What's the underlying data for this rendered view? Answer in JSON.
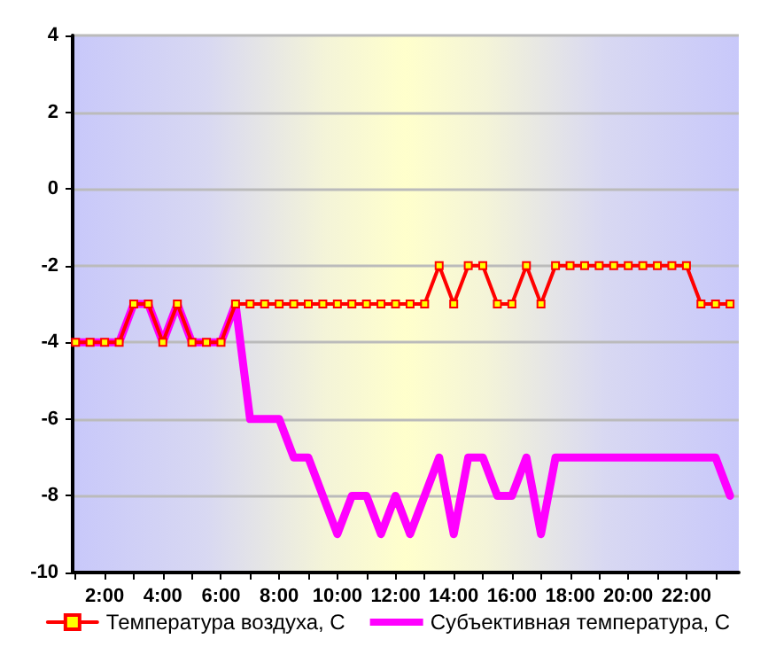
{
  "chart_data": {
    "type": "line",
    "x": [
      1,
      1.5,
      2,
      2.5,
      3,
      3.5,
      4,
      4.5,
      5,
      5.5,
      6,
      6.5,
      7,
      7.5,
      8,
      8.5,
      9,
      9.5,
      10,
      10.5,
      11,
      11.5,
      12,
      12.5,
      13,
      13.5,
      14,
      14.5,
      15,
      15.5,
      16,
      16.5,
      17,
      17.5,
      18,
      18.5,
      19,
      19.5,
      20,
      20.5,
      21,
      21.5,
      22,
      22.5,
      23,
      23.5
    ],
    "series": [
      {
        "name": "Температура воздуха, C",
        "color": "#ff0000",
        "marker": "square",
        "values": [
          -4,
          -4,
          -4,
          -4,
          -3,
          -3,
          -4,
          -3,
          -4,
          -4,
          -4,
          -3,
          -3,
          -3,
          -3,
          -3,
          -3,
          -3,
          -3,
          -3,
          -3,
          -3,
          -3,
          -3,
          -3,
          -2,
          -3,
          -2,
          -2,
          -3,
          -3,
          -2,
          -3,
          -2,
          -2,
          -2,
          -2,
          -2,
          -2,
          -2,
          -2,
          -2,
          -2,
          -3,
          -3,
          -3
        ]
      },
      {
        "name": "Субъективная температура, C",
        "color": "#ff00ff",
        "marker": "none",
        "values": [
          -4,
          -4,
          -4,
          -4,
          -3,
          -3,
          -4,
          -3,
          -4,
          -4,
          -4,
          -3,
          -6,
          -6,
          -6,
          -7,
          -7,
          -8,
          -9,
          -8,
          -8,
          -9,
          -8,
          -9,
          -8,
          -7,
          -9,
          -7,
          -7,
          -8,
          -8,
          -7,
          -9,
          -7,
          -7,
          -7,
          -7,
          -7,
          -7,
          -7,
          -7,
          -7,
          -7,
          -7,
          -7,
          -8
        ]
      }
    ],
    "xlim": [
      0.9,
      23.8
    ],
    "xticks": [
      {
        "value": 1,
        "label": null
      },
      {
        "value": 2,
        "label": "2:00"
      },
      {
        "value": 3,
        "label": null
      },
      {
        "value": 4,
        "label": "4:00"
      },
      {
        "value": 5,
        "label": null
      },
      {
        "value": 6,
        "label": "6:00"
      },
      {
        "value": 7,
        "label": null
      },
      {
        "value": 8,
        "label": "8:00"
      },
      {
        "value": 9,
        "label": null
      },
      {
        "value": 10,
        "label": "10:00"
      },
      {
        "value": 11,
        "label": null
      },
      {
        "value": 12,
        "label": "12:00"
      },
      {
        "value": 13,
        "label": null
      },
      {
        "value": 14,
        "label": "14:00"
      },
      {
        "value": 15,
        "label": null
      },
      {
        "value": 16,
        "label": "16:00"
      },
      {
        "value": 17,
        "label": null
      },
      {
        "value": 18,
        "label": "18:00"
      },
      {
        "value": 19,
        "label": null
      },
      {
        "value": 20,
        "label": "20:00"
      },
      {
        "value": 21,
        "label": null
      },
      {
        "value": 22,
        "label": "22:00"
      },
      {
        "value": 23,
        "label": null
      }
    ],
    "ylim": [
      -10,
      4
    ],
    "yticks": [
      -10,
      -8,
      -6,
      -4,
      -2,
      0,
      2,
      4
    ],
    "grid": "y",
    "legend": "bottom",
    "line_style": "solid"
  }
}
